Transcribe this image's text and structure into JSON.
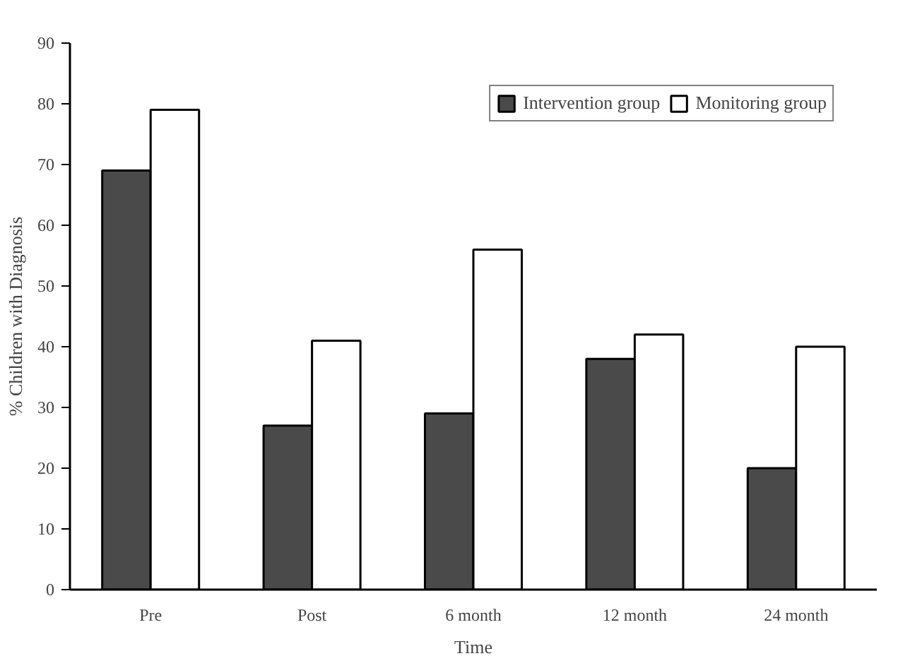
{
  "chart_data": {
    "type": "bar",
    "xlabel": "Time",
    "ylabel": "% Children with Diagnosis",
    "categories": [
      "Pre",
      "Post",
      "6 month",
      "12 month",
      "24 month"
    ],
    "series": [
      {
        "name": "Intervention group",
        "color": "#4a4a4a",
        "values": [
          69,
          27,
          29,
          38,
          20
        ]
      },
      {
        "name": "Monitoring group",
        "color": "#ffffff",
        "values": [
          79,
          41,
          56,
          42,
          40
        ]
      }
    ],
    "ylim": [
      0,
      90
    ],
    "yticks": [
      0,
      10,
      20,
      30,
      40,
      50,
      60,
      70,
      80,
      90
    ],
    "grid": false,
    "legend": "top right"
  }
}
